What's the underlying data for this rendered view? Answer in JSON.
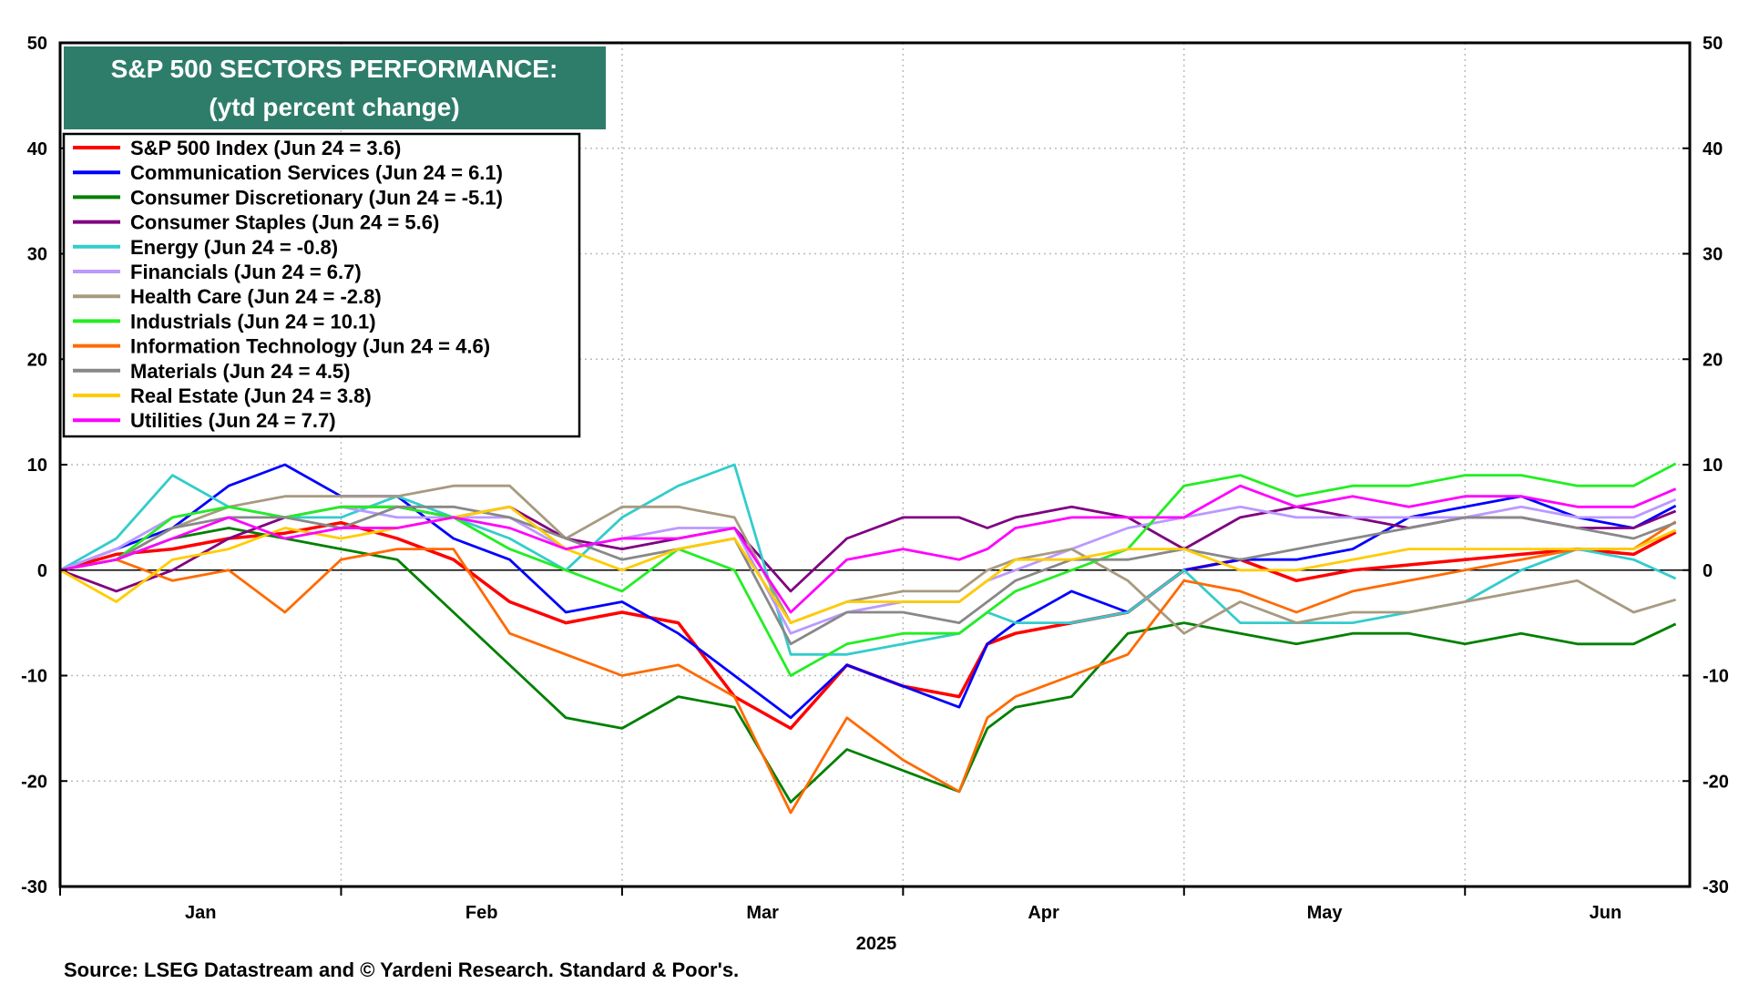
{
  "chart_data": {
    "type": "line",
    "title": "S&P 500 SECTORS PERFORMANCE:",
    "subtitle": "(ytd percent change)",
    "xlabel": "2025",
    "ylabel": "",
    "ylim": [
      -30,
      50
    ],
    "yticks": [
      "50",
      "40",
      "30",
      "20",
      "10",
      "0",
      "-10",
      "-20",
      "-30"
    ],
    "x_month_labels": [
      "Jan",
      "Feb",
      "Mar",
      "Apr",
      "May",
      "Jun"
    ],
    "x_range_months": [
      0,
      5.8
    ],
    "grid": true,
    "legend_position": "top-left",
    "source": "Source: LSEG Datastream and © Yardeni Research. Standard & Poor's.",
    "x": [
      0.0,
      0.2,
      0.4,
      0.6,
      0.8,
      1.0,
      1.2,
      1.4,
      1.6,
      1.8,
      2.0,
      2.2,
      2.4,
      2.6,
      2.8,
      3.0,
      3.2,
      3.3,
      3.4,
      3.6,
      3.8,
      4.0,
      4.2,
      4.4,
      4.6,
      4.8,
      5.0,
      5.2,
      5.4,
      5.6,
      5.75
    ],
    "series": [
      {
        "name": "S&P 500 Index (Jun 24 = 3.6)",
        "color": "#ff0000",
        "values": [
          0,
          1.5,
          2,
          3,
          3.5,
          4.5,
          3,
          1,
          -3,
          -5,
          -4,
          -5,
          -12,
          -15,
          -9,
          -11,
          -12,
          -7,
          -6,
          -5,
          -4,
          0,
          1,
          -1,
          0,
          0.5,
          1,
          1.5,
          2,
          1.5,
          3.6
        ]
      },
      {
        "name": "Communication Services (Jun 24 = 6.1)",
        "color": "#0000ff",
        "values": [
          0,
          2,
          4,
          8,
          10,
          7,
          7,
          3,
          1,
          -4,
          -3,
          -6,
          -10,
          -14,
          -9,
          -11,
          -13,
          -7,
          -5,
          -2,
          -4,
          0,
          1,
          1,
          2,
          5,
          6,
          7,
          5,
          4,
          6.1
        ]
      },
      {
        "name": "Consumer Discretionary (Jun 24 = -5.1)",
        "color": "#008000",
        "values": [
          0,
          1,
          3,
          4,
          3,
          2,
          1,
          -4,
          -9,
          -14,
          -15,
          -12,
          -13,
          -22,
          -17,
          -19,
          -21,
          -15,
          -13,
          -12,
          -6,
          -5,
          -6,
          -7,
          -6,
          -6,
          -7,
          -6,
          -7,
          -7,
          -5.1
        ]
      },
      {
        "name": "Consumer Staples (Jun 24 = 5.6)",
        "color": "#800080",
        "values": [
          0,
          -2,
          0,
          3,
          5,
          6,
          6,
          5,
          6,
          3,
          2,
          3,
          4,
          -2,
          3,
          5,
          5,
          4,
          5,
          6,
          5,
          2,
          5,
          6,
          5,
          4,
          5,
          5,
          4,
          4,
          5.6
        ]
      },
      {
        "name": "Energy (Jun 24 = -0.8)",
        "color": "#33cccc",
        "values": [
          0,
          3,
          9,
          6,
          5,
          5,
          7,
          5,
          3,
          0,
          5,
          8,
          10,
          -8,
          -8,
          -7,
          -6,
          -4,
          -5,
          -5,
          -4,
          0,
          -5,
          -5,
          -5,
          -4,
          -3,
          0,
          2,
          1,
          -0.8
        ]
      },
      {
        "name": "Financials (Jun 24 = 6.7)",
        "color": "#bb99ff",
        "values": [
          0,
          2,
          5,
          6,
          5,
          6,
          5,
          5,
          5,
          2,
          3,
          4,
          4,
          -6,
          -4,
          -3,
          -3,
          -1,
          0,
          2,
          4,
          5,
          6,
          5,
          5,
          5,
          5,
          6,
          5,
          5,
          6.7
        ]
      },
      {
        "name": "Health Care (Jun 24 = -2.8)",
        "color": "#a89a80",
        "values": [
          0,
          1,
          4,
          6,
          7,
          7,
          7,
          8,
          8,
          3,
          6,
          6,
          5,
          -5,
          -3,
          -2,
          -2,
          0,
          1,
          2,
          -1,
          -6,
          -3,
          -5,
          -4,
          -4,
          -3,
          -2,
          -1,
          -4,
          -2.8
        ]
      },
      {
        "name": "Industrials (Jun 24 = 10.1)",
        "color": "#22ee22",
        "values": [
          0,
          1,
          5,
          6,
          5,
          6,
          6,
          5,
          2,
          0,
          -2,
          2,
          0,
          -10,
          -7,
          -6,
          -6,
          -4,
          -2,
          0,
          2,
          8,
          9,
          7,
          8,
          8,
          9,
          9,
          8,
          8,
          10.1
        ]
      },
      {
        "name": "Information Technology (Jun 24 = 4.6)",
        "color": "#ff6a00",
        "values": [
          0,
          1,
          -1,
          0,
          -4,
          1,
          2,
          2,
          -6,
          -8,
          -10,
          -9,
          -12,
          -23,
          -14,
          -18,
          -21,
          -14,
          -12,
          -10,
          -8,
          -1,
          -2,
          -4,
          -2,
          -1,
          0,
          1,
          2,
          2,
          4.6
        ]
      },
      {
        "name": "Materials (Jun 24 = 4.5)",
        "color": "#888888",
        "values": [
          0,
          1,
          4,
          5,
          5,
          4,
          6,
          6,
          5,
          3,
          1,
          2,
          3,
          -7,
          -4,
          -4,
          -5,
          -3,
          -1,
          1,
          1,
          2,
          1,
          2,
          3,
          4,
          5,
          5,
          4,
          3,
          4.5
        ]
      },
      {
        "name": "Real Estate (Jun 24 = 3.8)",
        "color": "#ffcc00",
        "values": [
          0,
          -3,
          1,
          2,
          4,
          3,
          4,
          5,
          6,
          2,
          0,
          2,
          3,
          -5,
          -3,
          -3,
          -3,
          -1,
          1,
          1,
          2,
          2,
          0,
          0,
          1,
          2,
          2,
          2,
          2,
          2,
          3.8
        ]
      },
      {
        "name": "Utilities (Jun 24 = 7.7)",
        "color": "#ff00ff",
        "values": [
          0,
          1,
          3,
          5,
          3,
          4,
          4,
          5,
          4,
          2,
          3,
          3,
          4,
          -4,
          1,
          2,
          1,
          2,
          4,
          5,
          5,
          5,
          8,
          6,
          7,
          6,
          7,
          7,
          6,
          6,
          7.7
        ]
      }
    ]
  }
}
